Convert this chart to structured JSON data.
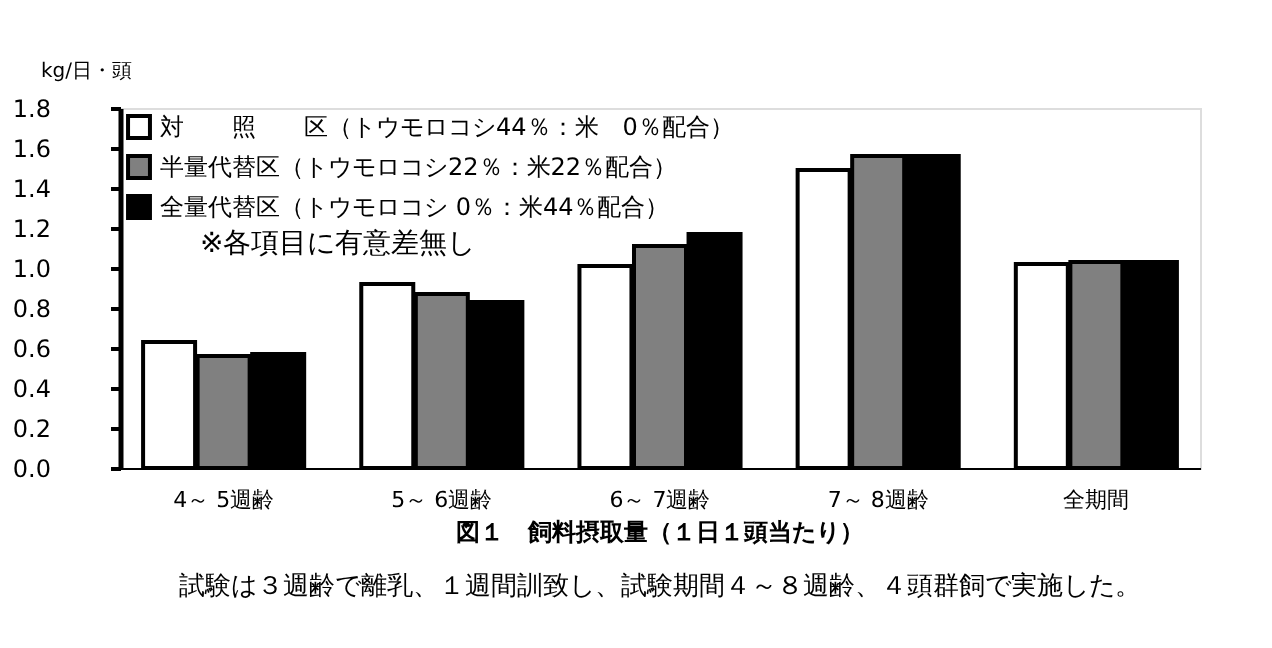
{
  "chart_data": {
    "type": "bar",
    "title": "図１　飼料摂取量（１日１頭当たり）",
    "ylabel": "kg/日・頭",
    "categories": [
      "4～ 5週齢",
      "5～ 6週齢",
      "6～ 7週齢",
      "7～ 8週齢",
      "全期間"
    ],
    "series": [
      {
        "name": "対　　照　　区（トウモロコシ44％：米　0％配合）",
        "color": "#ffffff",
        "values": [
          0.63,
          0.92,
          1.01,
          1.49,
          1.02
        ]
      },
      {
        "name": "半量代替区（トウモロコシ22％：米22％配合）",
        "color": "#808080",
        "values": [
          0.56,
          0.87,
          1.11,
          1.56,
          1.03
        ]
      },
      {
        "name": "全量代替区（トウモロコシ 0％：米44％配合）",
        "color": "#000000",
        "values": [
          0.57,
          0.83,
          1.17,
          1.56,
          1.03
        ]
      }
    ],
    "ylim": [
      0,
      1.8
    ],
    "yticks": [
      {
        "value": 0,
        "label": "0.0"
      },
      {
        "value": 0.2,
        "label": "0.2"
      },
      {
        "value": 0.4,
        "label": "0.4"
      },
      {
        "value": 0.6,
        "label": "0.6"
      },
      {
        "value": 0.8,
        "label": "0.8"
      },
      {
        "value": 1.0,
        "label": "1.0"
      },
      {
        "value": 1.2,
        "label": "1.2"
      },
      {
        "value": 1.4,
        "label": "1.4"
      },
      {
        "value": 1.6,
        "label": "1.6"
      },
      {
        "value": 1.8,
        "label": "1.8"
      }
    ],
    "annotations": [
      "※各項目に有意差無し",
      "試験は３週齢で離乳、１週間訓致し、試験期間４～８週齢、４頭群飼で実施した。"
    ],
    "legend": "top left",
    "grid": false
  }
}
